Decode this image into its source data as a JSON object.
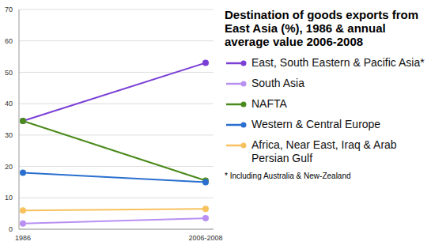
{
  "chart_data": {
    "type": "line",
    "title": "Destination  of goods exports from East Asia (%), 1986 & annual average value 2006-2008",
    "categories": [
      "1986",
      "2006-2008"
    ],
    "series": [
      {
        "name": "East, South Eastern & Pacific Asia*",
        "color": "#7a3fd6",
        "values": [
          34.5,
          53
        ]
      },
      {
        "name": "South Asia",
        "color": "#b990f2",
        "values": [
          1.8,
          3.5
        ]
      },
      {
        "name": "NAFTA",
        "color": "#4b8a1c",
        "values": [
          34.5,
          15.5
        ]
      },
      {
        "name": "Western & Central Europe",
        "color": "#2a6fcf",
        "values": [
          18,
          15
        ]
      },
      {
        "name": "Africa, Near East, Iraq & Arab Persian Gulf",
        "color": "#f7c25e",
        "values": [
          6,
          6.5
        ]
      }
    ],
    "ylim": [
      0,
      70
    ],
    "yticks": [
      0,
      10,
      20,
      30,
      40,
      50,
      60,
      70
    ],
    "grid": true,
    "legend": "right",
    "marker": "circle",
    "annotations": [
      "* Including Australia & New-Zealand"
    ]
  }
}
